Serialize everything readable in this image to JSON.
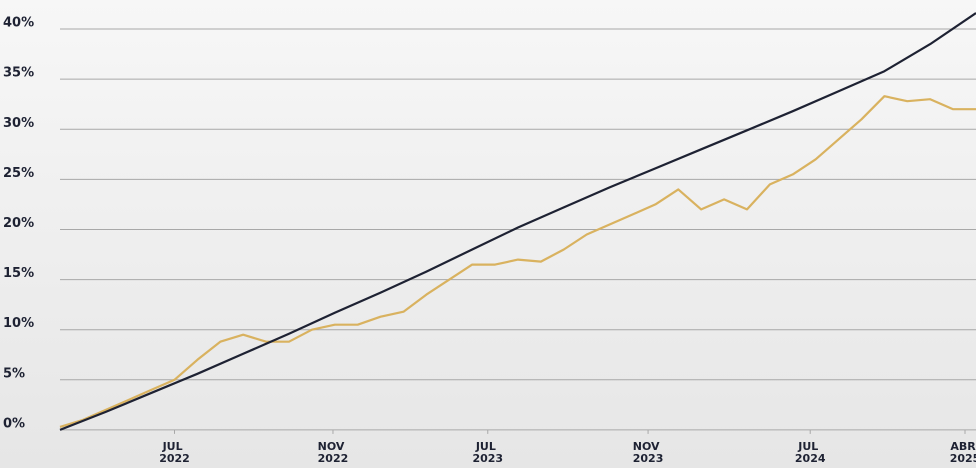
{
  "chart_data": {
    "type": "line",
    "xlim": [
      0,
      100
    ],
    "xticks": [
      {
        "value": 12.5,
        "label": "JUL 2022"
      },
      {
        "value": 29.8,
        "label": "NOV 2022"
      },
      {
        "value": 46.7,
        "label": "JUL 2023"
      },
      {
        "value": 64.2,
        "label": "NOV 2023"
      },
      {
        "value": 81.9,
        "label": "JUL 2024"
      },
      {
        "value": 98.8,
        "label": "ABR 2025"
      }
    ],
    "ylim": [
      -3.8,
      42.9
    ],
    "yticks": [
      {
        "value": 0,
        "label": "0%"
      },
      {
        "value": 5,
        "label": "5%"
      },
      {
        "value": 10,
        "label": "10%"
      },
      {
        "value": 15,
        "label": "15%"
      },
      {
        "value": 20,
        "label": "20%"
      },
      {
        "value": 25,
        "label": "25%"
      },
      {
        "value": 30,
        "label": "30%"
      },
      {
        "value": 35,
        "label": "35%"
      },
      {
        "value": 40,
        "label": "40%"
      }
    ],
    "grid": true,
    "series": [
      {
        "color": "#d9b25f",
        "x": [
          0,
          2.5,
          5,
          7.5,
          10,
          12.5,
          15,
          17.5,
          20,
          22.5,
          25,
          27.5,
          30,
          32.5,
          35,
          37.5,
          40,
          42.5,
          45,
          47.5,
          50,
          52.5,
          55,
          57.5,
          60,
          62.5,
          65,
          67.5,
          70,
          72.5,
          75,
          77.5,
          80,
          82.5,
          85,
          87.5,
          90,
          92.5,
          95,
          97.5,
          100
        ],
        "values": [
          0.3,
          1.0,
          2.0,
          3.0,
          4.0,
          5.0,
          7.0,
          8.8,
          9.5,
          8.8,
          8.8,
          10.0,
          10.5,
          10.5,
          11.3,
          11.8,
          13.5,
          15.0,
          16.5,
          16.5,
          17.0,
          16.8,
          18.0,
          19.5,
          20.5,
          21.5,
          22.5,
          24.0,
          22.0,
          23.0,
          22.0,
          24.5,
          25.5,
          27.0,
          29.0,
          31.0,
          33.3,
          32.8,
          33.0,
          32.0,
          32.0
        ]
      },
      {
        "color": "#1e2233",
        "x": [
          0,
          5,
          10,
          15,
          20,
          25,
          30,
          35,
          40,
          45,
          50,
          55,
          60,
          65,
          70,
          75,
          80,
          85,
          90,
          95,
          100
        ],
        "values": [
          0,
          1.8,
          3.7,
          5.6,
          7.6,
          9.6,
          11.7,
          13.7,
          15.8,
          18,
          20.2,
          22.2,
          24.2,
          26.1,
          28,
          29.9,
          31.8,
          33.8,
          35.8,
          38.5,
          41.6
        ]
      }
    ]
  }
}
